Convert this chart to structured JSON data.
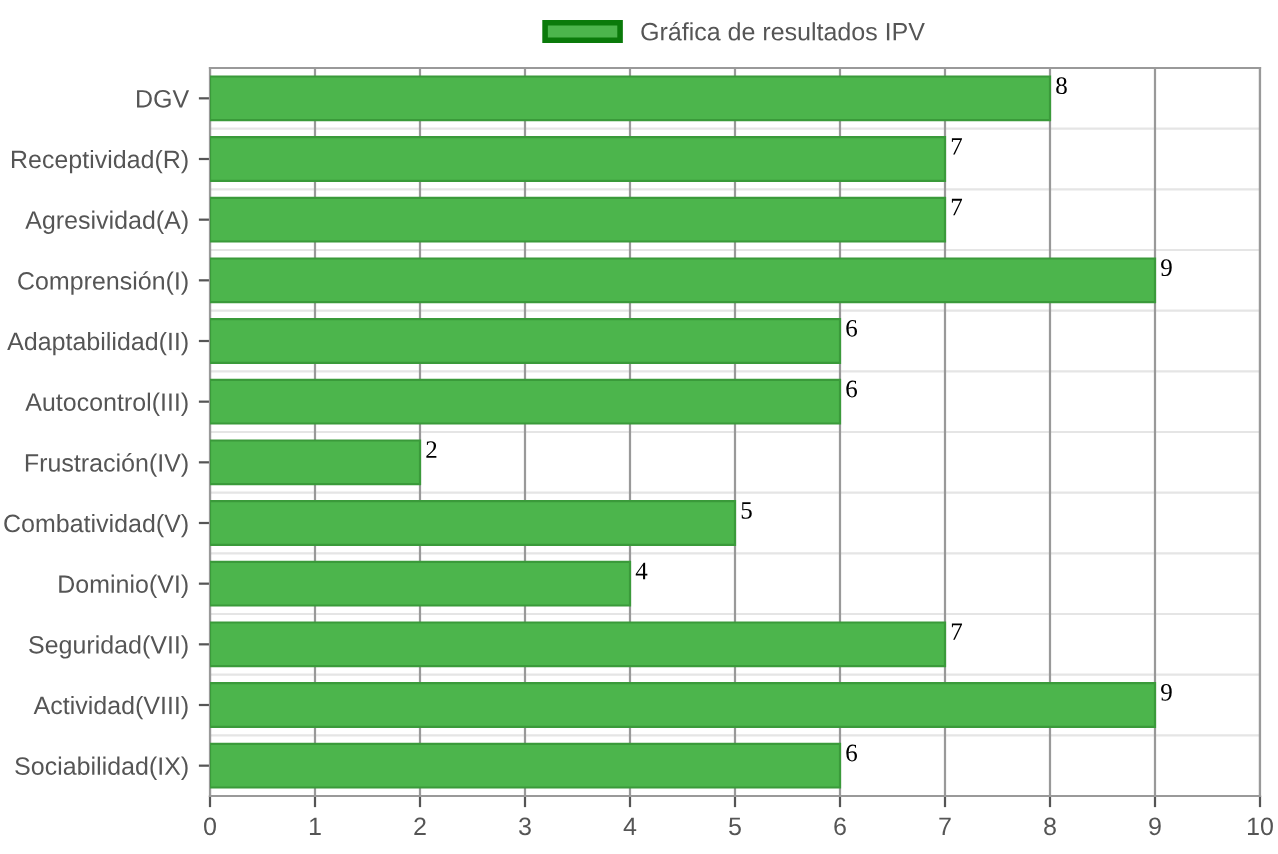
{
  "chart_data": {
    "type": "bar",
    "orientation": "horizontal",
    "categories": [
      "DGV",
      "Receptividad(R)",
      "Agresividad(A)",
      "Comprensión(I)",
      "Adaptabilidad(II)",
      "Autocontrol(III)",
      "Frustración(IV)",
      "Combatividad(V)",
      "Dominio(VI)",
      "Seguridad(VII)",
      "Actividad(VIII)",
      "Sociabilidad(IX)"
    ],
    "series": [
      {
        "name": "Gráfica de resultados IPV",
        "color": "#4cb54c",
        "values": [
          8,
          7,
          7,
          9,
          6,
          6,
          2,
          5,
          4,
          7,
          9,
          6
        ]
      }
    ],
    "xlim": [
      0,
      10
    ],
    "xticks": [
      0,
      1,
      2,
      3,
      4,
      5,
      6,
      7,
      8,
      9,
      10
    ],
    "grid": true,
    "legend": "top",
    "data_labels": true
  }
}
